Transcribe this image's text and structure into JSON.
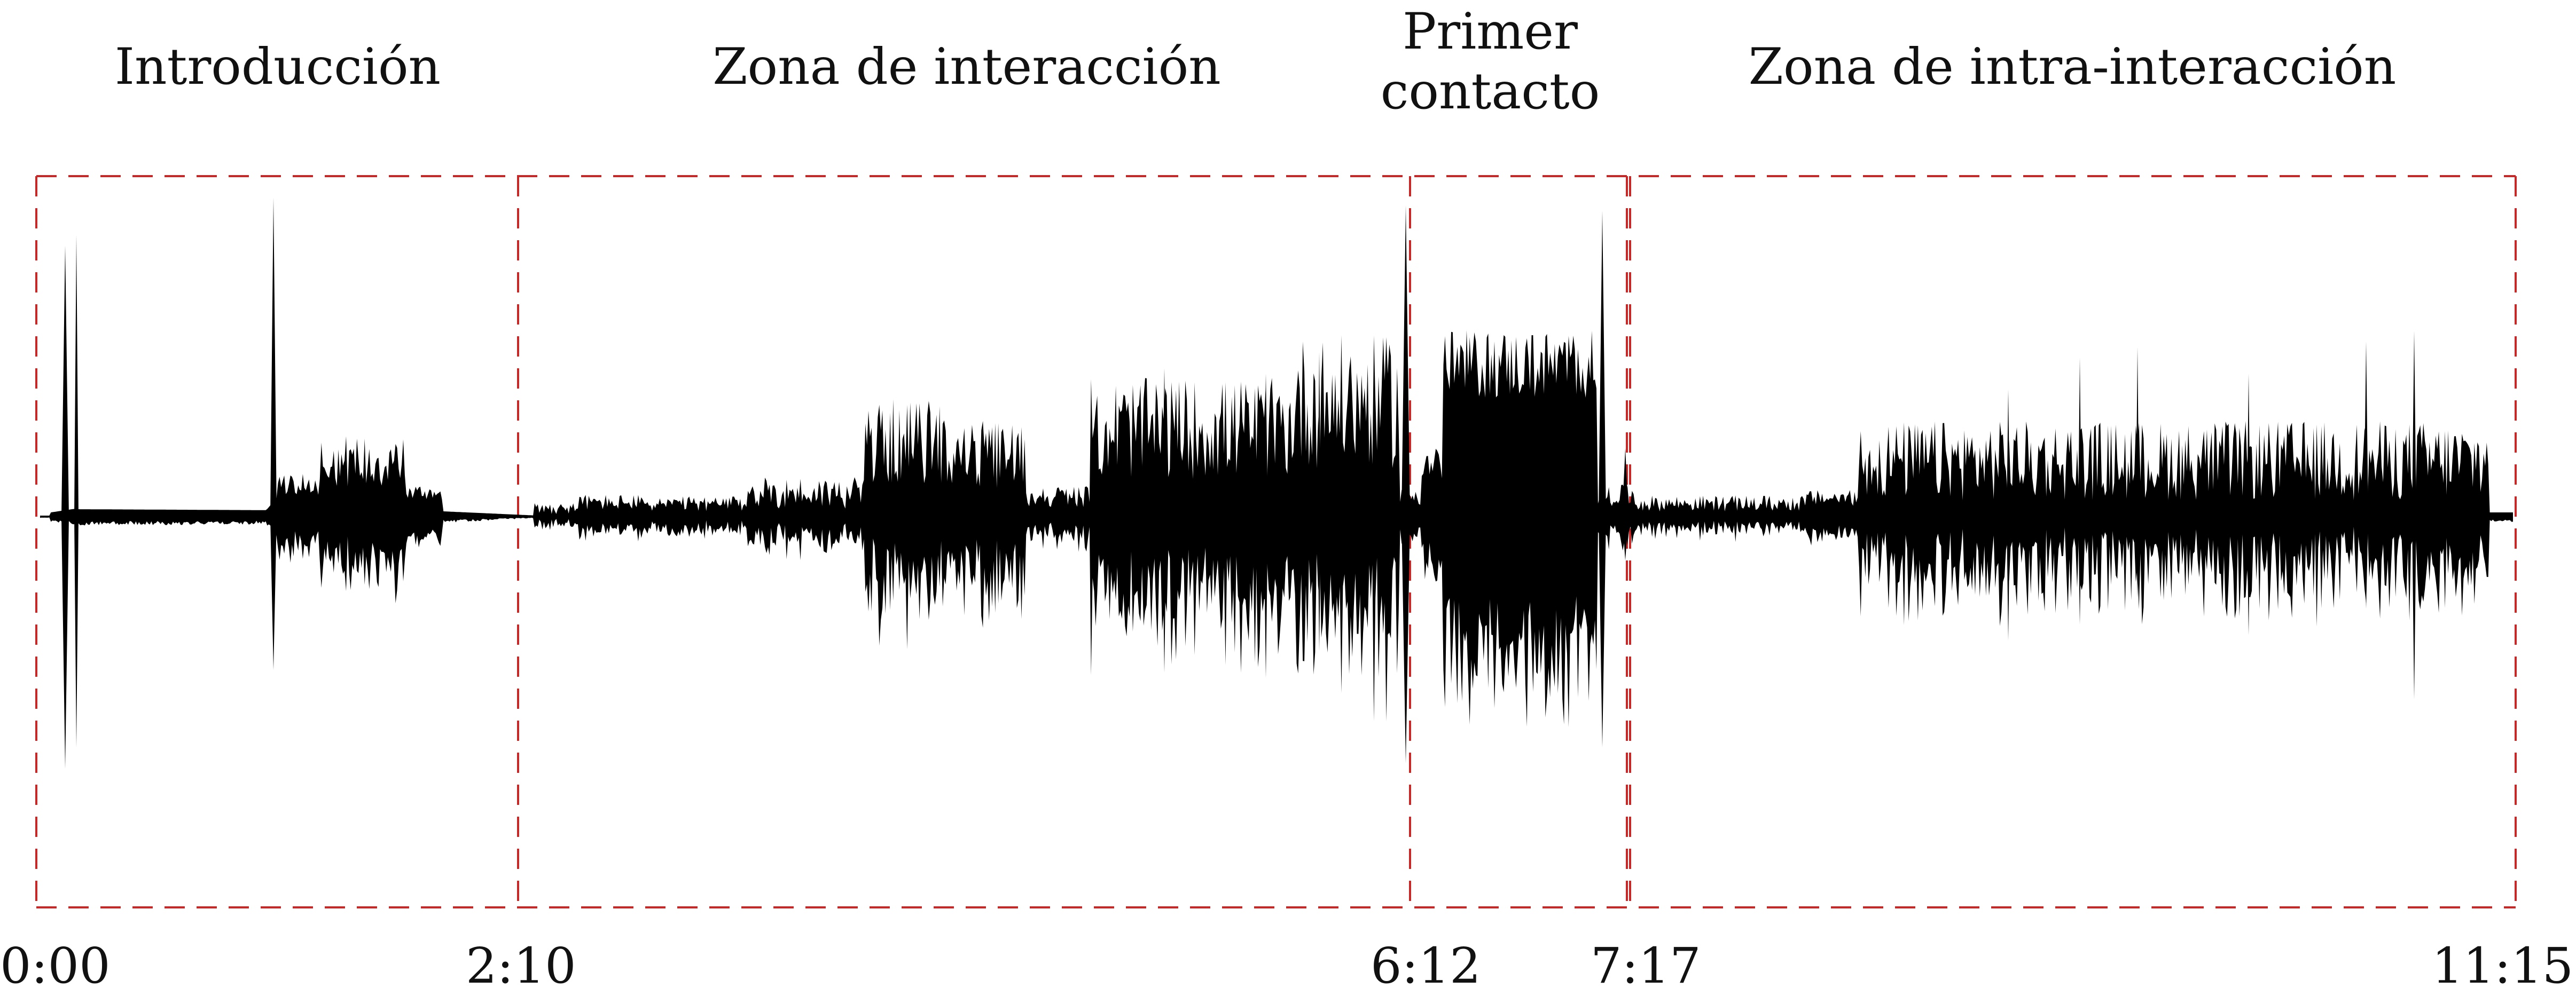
{
  "sections": [
    {
      "label": "Introducción"
    },
    {
      "label": "Zona de interacción"
    },
    {
      "label": "Primer\ncontacto"
    },
    {
      "label": "Zona de intra-interacción"
    }
  ],
  "timeline": {
    "marks": [
      "0:00",
      "2:10",
      "6:12",
      "7:17",
      "11:15"
    ]
  },
  "colors": {
    "waveform": "#000000",
    "section_border": "#c62828",
    "text": "#111111"
  }
}
